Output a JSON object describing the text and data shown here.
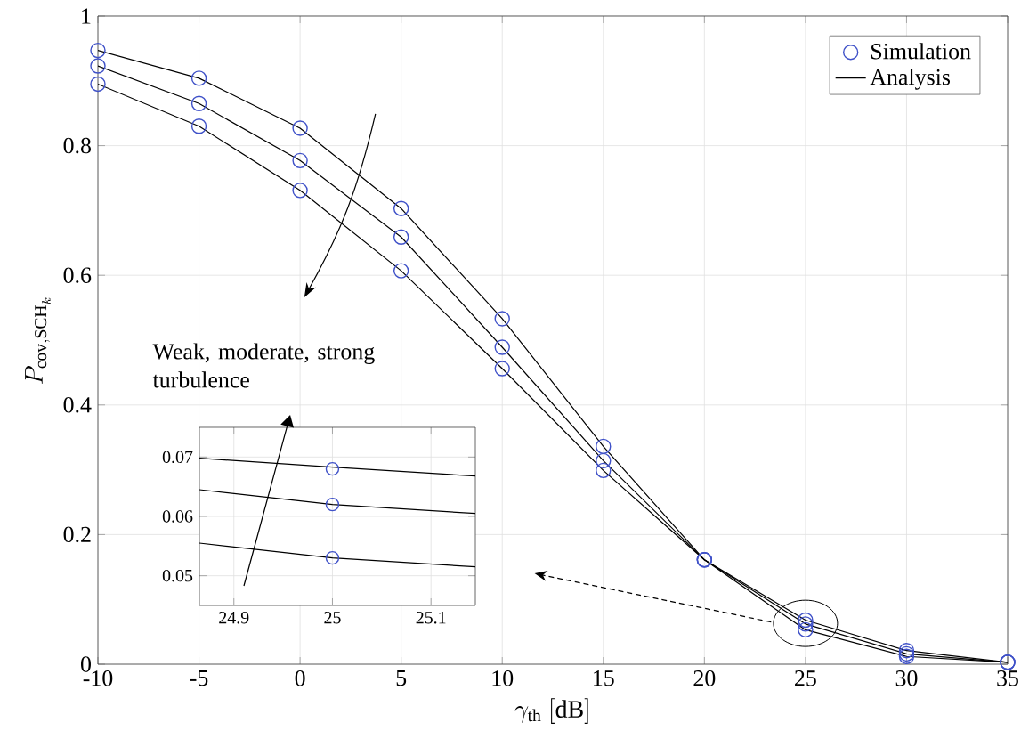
{
  "chart_data": [
    {
      "type": "line",
      "xlabel": "\\gamma_{\\mathrm{th}}\\ \\mathrm{[dB]}",
      "ylabel": "P_{\\mathrm{cov,SCH}_k}",
      "x": [
        -10,
        -5,
        0,
        5,
        10,
        15,
        20,
        25,
        30,
        35
      ],
      "xlim": [
        -10,
        35
      ],
      "ylim": [
        0,
        1
      ],
      "xticks": [
        -10,
        -5,
        0,
        5,
        10,
        15,
        20,
        25,
        30,
        35
      ],
      "yticks": [
        0,
        0.2,
        0.4,
        0.6,
        0.8,
        1
      ],
      "grid": true,
      "legend": "top right",
      "annotations": [
        "Weak, moderate, strong turbulence"
      ],
      "series": [
        {
          "name": "Simulation",
          "type": "scatter",
          "marker": "circle",
          "color": "#3f51c8",
          "values": [
            0.947,
            0.904,
            0.827,
            0.703,
            0.533,
            0.336,
            0.161,
            0.068,
            0.021,
            0.003
          ]
        },
        {
          "type": "scatter",
          "marker": "circle",
          "color": "#3f51c8",
          "values": [
            0.923,
            0.865,
            0.777,
            0.659,
            0.489,
            0.314,
            0.161,
            0.062,
            0.016,
            0.003
          ]
        },
        {
          "type": "scatter",
          "marker": "circle",
          "color": "#3f51c8",
          "values": [
            0.895,
            0.83,
            0.731,
            0.607,
            0.456,
            0.299,
            0.161,
            0.053,
            0.012,
            0.003
          ]
        },
        {
          "name": "Analysis",
          "color": "#000000",
          "values": [
            0.947,
            0.904,
            0.827,
            0.703,
            0.533,
            0.336,
            0.161,
            0.068,
            0.021,
            0.003
          ]
        },
        {
          "color": "#000000",
          "values": [
            0.923,
            0.865,
            0.777,
            0.659,
            0.489,
            0.314,
            0.161,
            0.062,
            0.016,
            0.003
          ]
        },
        {
          "color": "#000000",
          "values": [
            0.895,
            0.83,
            0.731,
            0.607,
            0.456,
            0.299,
            0.161,
            0.053,
            0.012,
            0.003
          ]
        }
      ]
    },
    {
      "type": "line",
      "xlim": [
        24.865,
        25.145
      ],
      "ylim": [
        0.045,
        0.075
      ],
      "xticks": [
        24.9,
        25,
        25.1
      ],
      "yticks": [
        0.05,
        0.06,
        0.07
      ],
      "grid": true,
      "series": [
        {
          "color": "#000000",
          "x": [
            24.865,
            25,
            25.145
          ],
          "values": [
            0.0698,
            0.0683,
            0.0668
          ]
        },
        {
          "color": "#000000",
          "x": [
            24.865,
            25,
            25.145
          ],
          "values": [
            0.0645,
            0.062,
            0.0605
          ]
        },
        {
          "color": "#000000",
          "x": [
            24.865,
            25,
            25.145
          ],
          "values": [
            0.0555,
            0.053,
            0.0515
          ]
        },
        {
          "type": "scatter",
          "marker": "circle",
          "color": "#3f51c8",
          "x": [
            25
          ],
          "values": [
            0.068
          ]
        },
        {
          "type": "scatter",
          "marker": "circle",
          "color": "#3f51c8",
          "x": [
            25
          ],
          "values": [
            0.062
          ]
        },
        {
          "type": "scatter",
          "marker": "circle",
          "color": "#3f51c8",
          "x": [
            25
          ],
          "values": [
            0.053
          ]
        }
      ]
    }
  ]
}
